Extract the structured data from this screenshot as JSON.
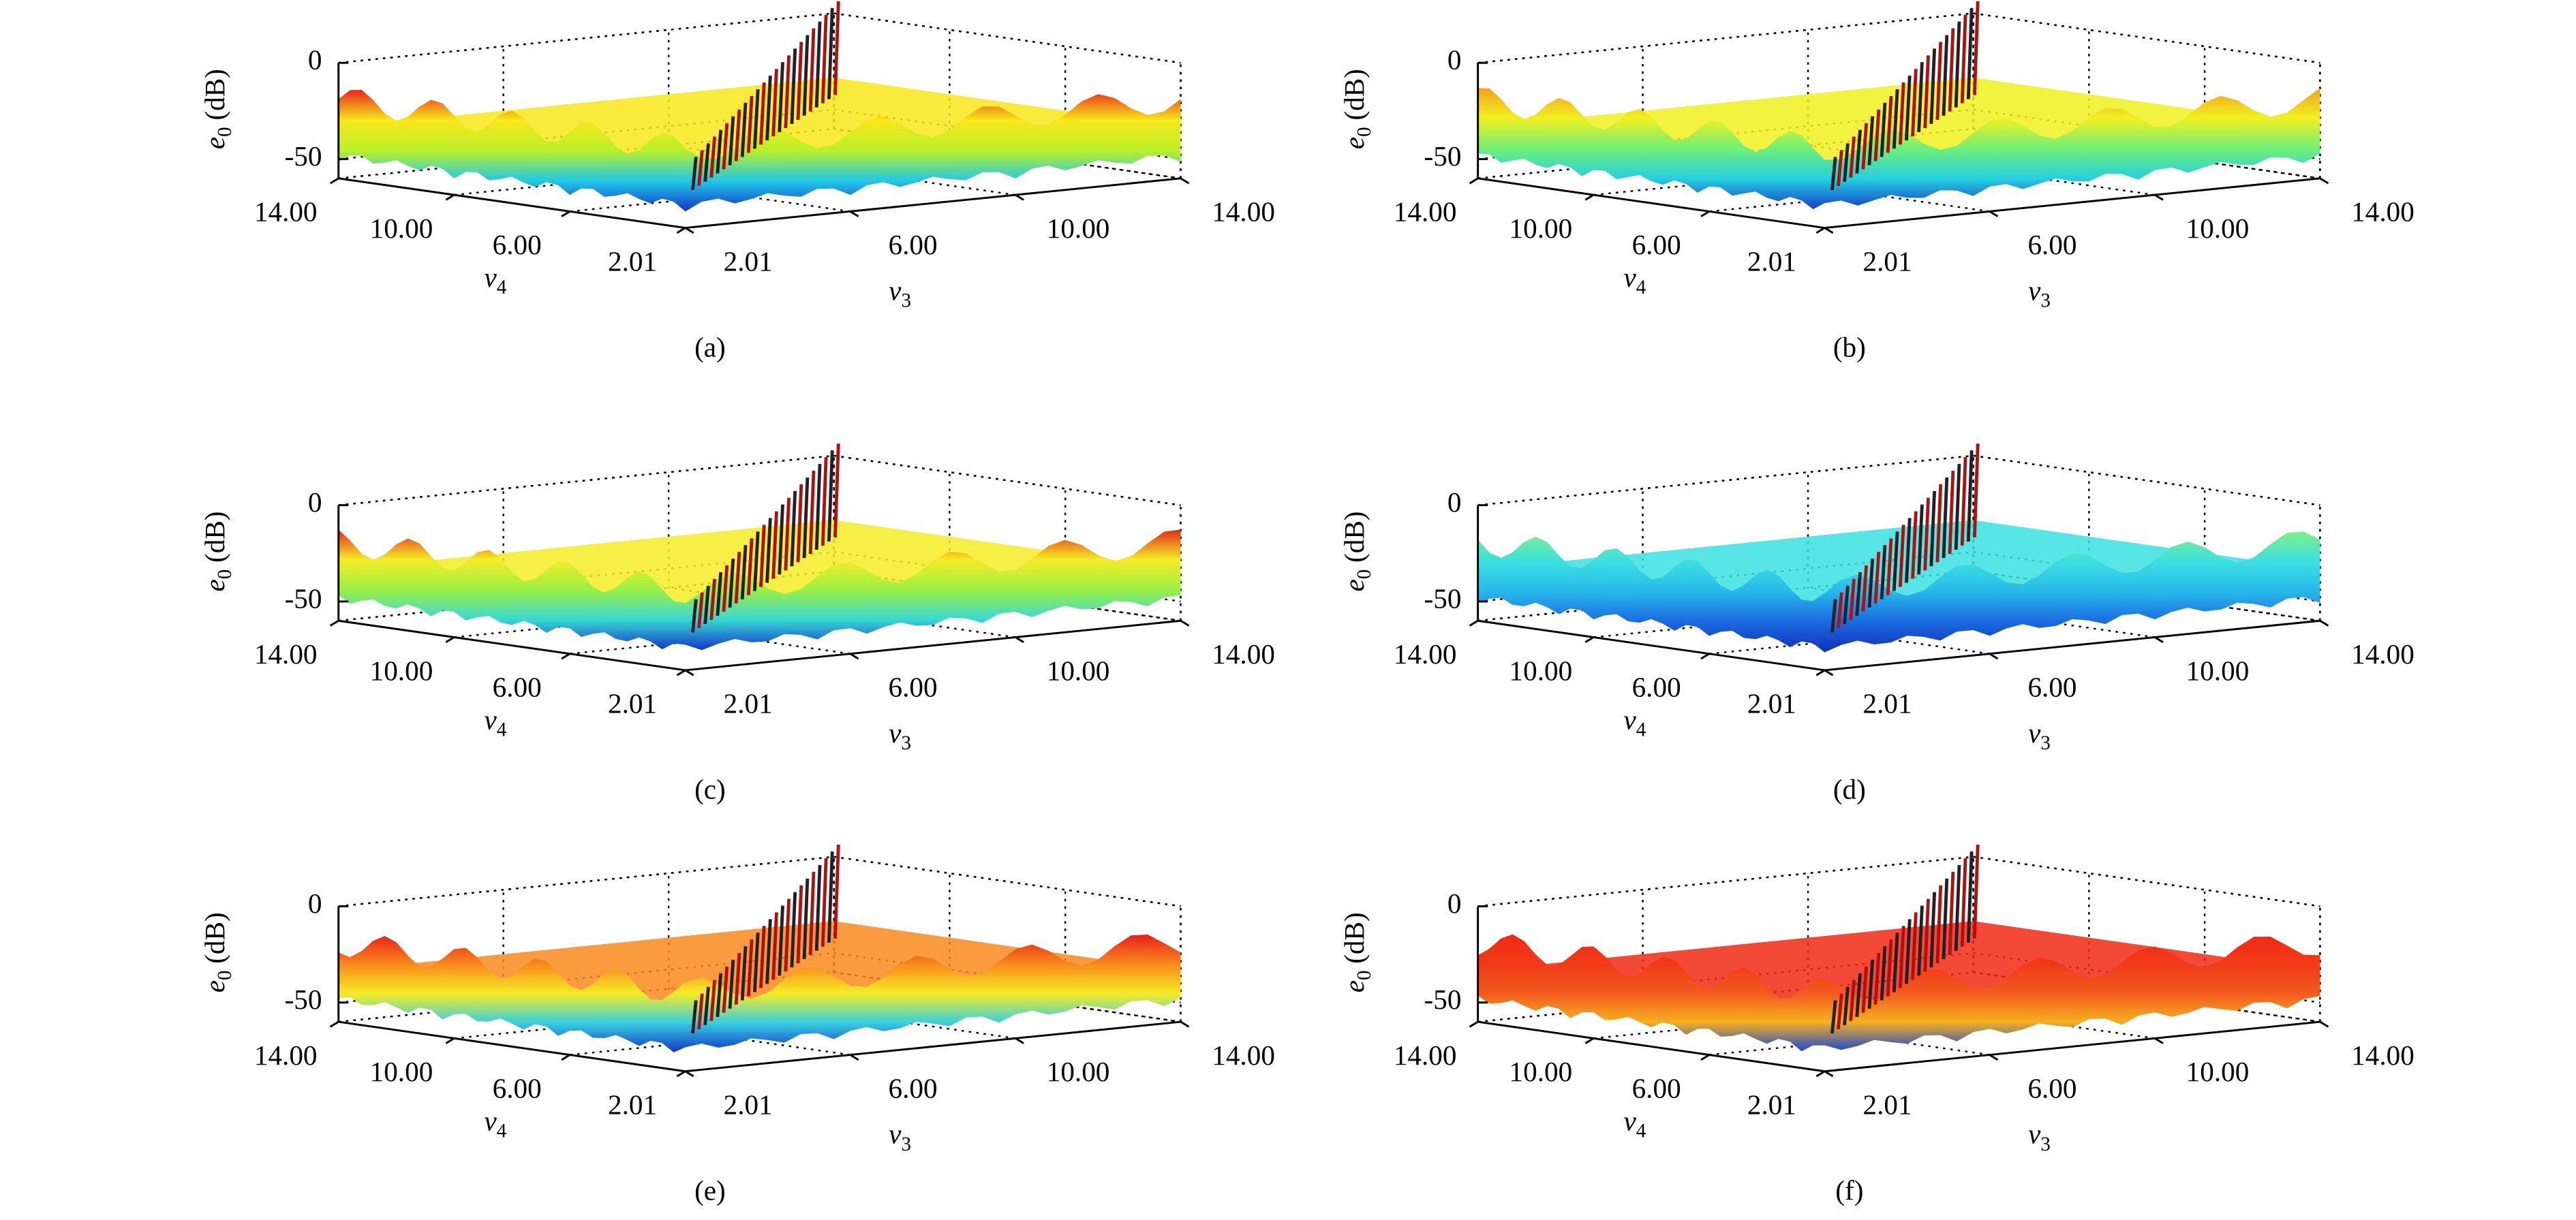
{
  "chart_data": [
    {
      "type": "surface",
      "caption": "(a)",
      "xlabel": {
        "symbol": "v",
        "subscript": "3"
      },
      "ylabel": {
        "symbol": "v",
        "subscript": "4"
      },
      "zlabel": {
        "symbol": "e",
        "subscript": "0",
        "unit": "(dB)"
      },
      "xlim": [
        2.01,
        14
      ],
      "ylim": [
        2.01,
        14
      ],
      "zlim": [
        -60,
        0
      ],
      "xticks": [
        2.01,
        {
          "value": 6,
          "label": "6.00"
        },
        {
          "value": 10,
          "label": "10.00"
        },
        {
          "value": 14,
          "label": "14.00"
        }
      ],
      "yticks": [
        2.01,
        {
          "value": 6,
          "label": "6.00"
        },
        {
          "value": 10,
          "label": "10.00"
        },
        {
          "value": 14,
          "label": "14.00"
        }
      ],
      "zticks": [
        -50,
        0
      ]
    },
    {
      "type": "surface",
      "caption": "(b)",
      "xlabel": {
        "symbol": "v",
        "subscript": "3"
      },
      "ylabel": {
        "symbol": "v",
        "subscript": "4"
      },
      "zlabel": {
        "symbol": "e",
        "subscript": "0",
        "unit": "(dB)"
      },
      "xlim": [
        2.01,
        14
      ],
      "ylim": [
        2.01,
        14
      ],
      "zlim": [
        -60,
        0
      ],
      "xticks": [
        2.01,
        {
          "value": 6,
          "label": "6.00"
        },
        {
          "value": 10,
          "label": "10.00"
        },
        {
          "value": 14,
          "label": "14.00"
        }
      ],
      "yticks": [
        2.01,
        {
          "value": 6,
          "label": "6.00"
        },
        {
          "value": 10,
          "label": "10.00"
        },
        {
          "value": 14,
          "label": "14.00"
        }
      ],
      "zticks": [
        -50,
        0
      ]
    },
    {
      "type": "surface",
      "caption": "(c)",
      "xlabel": {
        "symbol": "v",
        "subscript": "3"
      },
      "ylabel": {
        "symbol": "v",
        "subscript": "4"
      },
      "zlabel": {
        "symbol": "e",
        "subscript": "0",
        "unit": "(dB)"
      },
      "xlim": [
        2.01,
        14
      ],
      "ylim": [
        2.01,
        14
      ],
      "zlim": [
        -60,
        0
      ],
      "xticks": [
        2.01,
        {
          "value": 6,
          "label": "6.00"
        },
        {
          "value": 10,
          "label": "10.00"
        },
        {
          "value": 14,
          "label": "14.00"
        }
      ],
      "yticks": [
        2.01,
        {
          "value": 6,
          "label": "6.00"
        },
        {
          "value": 10,
          "label": "10.00"
        },
        {
          "value": 14,
          "label": "14.00"
        }
      ],
      "zticks": [
        -50,
        0
      ]
    },
    {
      "type": "surface",
      "caption": "(d)",
      "xlabel": {
        "symbol": "v",
        "subscript": "3"
      },
      "ylabel": {
        "symbol": "v",
        "subscript": "4"
      },
      "zlabel": {
        "symbol": "e",
        "subscript": "0",
        "unit": "(dB)"
      },
      "xlim": [
        2.01,
        14
      ],
      "ylim": [
        2.01,
        14
      ],
      "zlim": [
        -60,
        0
      ],
      "xticks": [
        2.01,
        {
          "value": 6,
          "label": "6.00"
        },
        {
          "value": 10,
          "label": "10.00"
        },
        {
          "value": 14,
          "label": "14.00"
        }
      ],
      "yticks": [
        2.01,
        {
          "value": 6,
          "label": "6.00"
        },
        {
          "value": 10,
          "label": "10.00"
        },
        {
          "value": 14,
          "label": "14.00"
        }
      ],
      "zticks": [
        -50,
        0
      ]
    },
    {
      "type": "surface",
      "caption": "(e)",
      "xlabel": {
        "symbol": "v",
        "subscript": "3"
      },
      "ylabel": {
        "symbol": "v",
        "subscript": "4"
      },
      "zlabel": {
        "symbol": "e",
        "subscript": "0",
        "unit": "(dB)"
      },
      "xlim": [
        2.01,
        14
      ],
      "ylim": [
        2.01,
        14
      ],
      "zlim": [
        -60,
        0
      ],
      "xticks": [
        2.01,
        {
          "value": 6,
          "label": "6.00"
        },
        {
          "value": 10,
          "label": "10.00"
        },
        {
          "value": 14,
          "label": "14.00"
        }
      ],
      "yticks": [
        2.01,
        {
          "value": 6,
          "label": "6.00"
        },
        {
          "value": 10,
          "label": "10.00"
        },
        {
          "value": 14,
          "label": "14.00"
        }
      ],
      "zticks": [
        -50,
        0
      ]
    },
    {
      "type": "surface",
      "caption": "(f)",
      "xlabel": {
        "symbol": "v",
        "subscript": "3"
      },
      "ylabel": {
        "symbol": "v",
        "subscript": "4"
      },
      "zlabel": {
        "symbol": "e",
        "subscript": "0",
        "unit": "(dB)"
      },
      "xlim": [
        2.01,
        14
      ],
      "ylim": [
        2.01,
        14
      ],
      "zlim": [
        -60,
        0
      ],
      "xticks": [
        2.01,
        {
          "value": 6,
          "label": "6.00"
        },
        {
          "value": 10,
          "label": "10.00"
        },
        {
          "value": 14,
          "label": "14.00"
        }
      ],
      "yticks": [
        2.01,
        {
          "value": 6,
          "label": "6.00"
        },
        {
          "value": 10,
          "label": "10.00"
        },
        {
          "value": 14,
          "label": "14.00"
        }
      ],
      "zticks": [
        -50,
        0
      ]
    }
  ]
}
